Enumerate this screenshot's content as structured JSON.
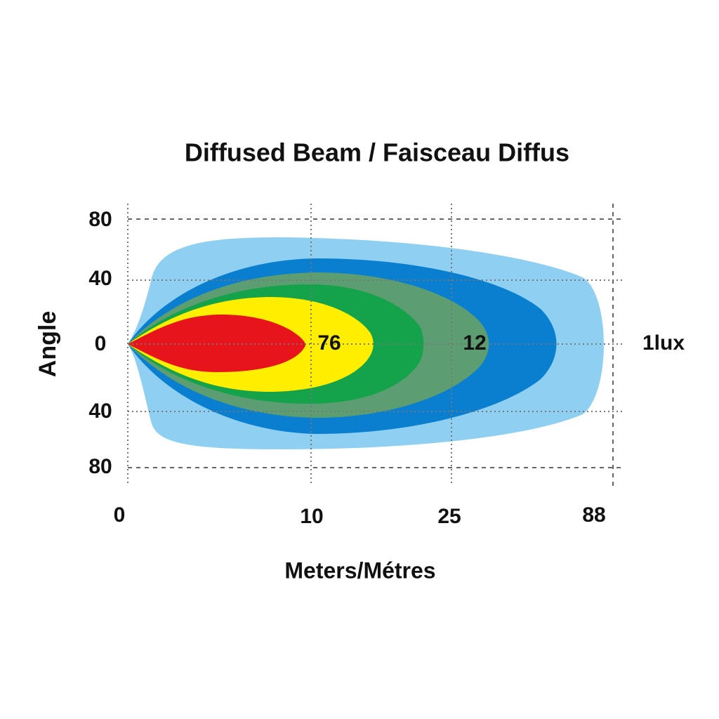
{
  "title": "Diffused Beam / Faisceau Diffus",
  "y_axis": {
    "label": "Angle",
    "ticks": [
      "80",
      "40",
      "0",
      "40",
      "80"
    ]
  },
  "x_axis": {
    "label": "Meters/Métres",
    "ticks": [
      "0",
      "10",
      "25",
      "88"
    ]
  },
  "zone_labels": [
    "76",
    "12",
    "1lux"
  ]
}
